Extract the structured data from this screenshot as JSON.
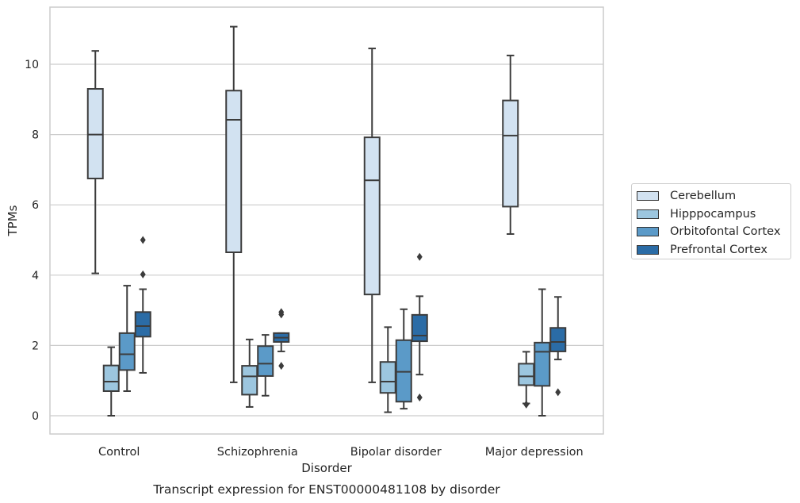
{
  "chart_data": {
    "type": "box",
    "title": "",
    "caption": "Transcript expression for ENST00000481108 by disorder",
    "xlabel": "Disorder",
    "ylabel": "TPMs",
    "ylim": [
      -0.5,
      11.7
    ],
    "yticks": [
      0,
      2,
      4,
      6,
      8,
      10
    ],
    "grid": "horizontal",
    "legend_position": "right",
    "categories": [
      "Control",
      "Schizophrenia",
      "Bipolar disorder",
      "Major depression"
    ],
    "series": [
      {
        "name": "Cerebellum",
        "color": "#d2e2f1",
        "boxes": [
          {
            "whislo": 4.05,
            "q1": 6.75,
            "med": 8.0,
            "q3": 9.3,
            "whishi": 10.38,
            "fliers": []
          },
          {
            "whislo": 0.95,
            "q1": 4.65,
            "med": 8.42,
            "q3": 9.25,
            "whishi": 11.07,
            "fliers": []
          },
          {
            "whislo": 0.95,
            "q1": 3.45,
            "med": 6.7,
            "q3": 7.92,
            "whishi": 10.45,
            "fliers": []
          },
          {
            "whislo": 5.17,
            "q1": 5.95,
            "med": 7.97,
            "q3": 8.97,
            "whishi": 10.25,
            "fliers": []
          }
        ]
      },
      {
        "name": "Hipppocampus",
        "color": "#9cc6df",
        "boxes": [
          {
            "whislo": 0.0,
            "q1": 0.7,
            "med": 0.97,
            "q3": 1.43,
            "whishi": 1.95,
            "fliers": []
          },
          {
            "whislo": 0.25,
            "q1": 0.6,
            "med": 1.12,
            "q3": 1.42,
            "whishi": 2.17,
            "fliers": []
          },
          {
            "whislo": 0.1,
            "q1": 0.65,
            "med": 0.97,
            "q3": 1.53,
            "whishi": 2.52,
            "fliers": []
          },
          {
            "whislo": 0.35,
            "q1": 0.87,
            "med": 1.12,
            "q3": 1.48,
            "whishi": 1.82,
            "fliers": [
              0.32
            ]
          }
        ]
      },
      {
        "name": "Orbitofontal Cortex",
        "color": "#5b9ac8",
        "boxes": [
          {
            "whislo": 0.7,
            "q1": 1.3,
            "med": 1.75,
            "q3": 2.35,
            "whishi": 3.7,
            "fliers": []
          },
          {
            "whislo": 0.57,
            "q1": 1.13,
            "med": 1.48,
            "q3": 1.98,
            "whishi": 2.3,
            "fliers": []
          },
          {
            "whislo": 0.2,
            "q1": 0.4,
            "med": 1.25,
            "q3": 2.15,
            "whishi": 3.03,
            "fliers": []
          },
          {
            "whislo": 0.0,
            "q1": 0.85,
            "med": 1.82,
            "q3": 2.08,
            "whishi": 3.6,
            "fliers": []
          }
        ]
      },
      {
        "name": "Prefrontal Cortex",
        "color": "#2b6ca6",
        "boxes": [
          {
            "whislo": 1.22,
            "q1": 2.25,
            "med": 2.55,
            "q3": 2.95,
            "whishi": 3.6,
            "fliers": [
              4.02,
              5.0
            ]
          },
          {
            "whislo": 1.83,
            "q1": 2.1,
            "med": 2.22,
            "q3": 2.35,
            "whishi": 2.35,
            "fliers": [
              1.42,
              2.88,
              2.95
            ]
          },
          {
            "whislo": 1.17,
            "q1": 2.12,
            "med": 2.28,
            "q3": 2.87,
            "whishi": 3.4,
            "fliers": [
              0.52,
              4.52
            ]
          },
          {
            "whislo": 1.6,
            "q1": 1.83,
            "med": 2.1,
            "q3": 2.5,
            "whishi": 3.38,
            "fliers": [
              0.67
            ]
          }
        ]
      }
    ]
  }
}
